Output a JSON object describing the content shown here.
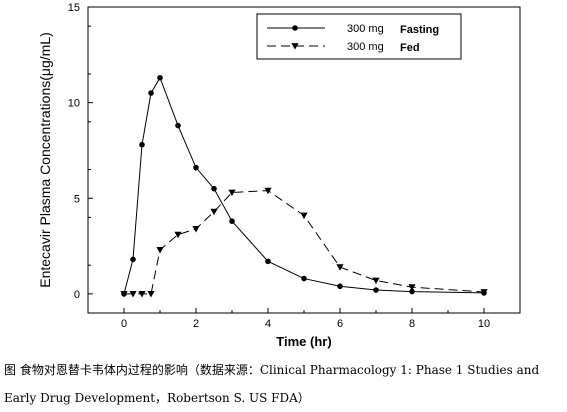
{
  "chart_data": {
    "type": "line",
    "xlabel": "Time (hr)",
    "ylabel": "Entecavir Plasma Concentrations(μg/mL)",
    "xlim": [
      -1,
      11
    ],
    "ylim": [
      -1,
      15
    ],
    "xticks": [
      0,
      2,
      4,
      6,
      8,
      10
    ],
    "yticks": [
      0,
      5,
      10,
      15
    ],
    "grid": false,
    "legend_placement": "top-right",
    "series": [
      {
        "name": "Fasting",
        "dose": "300 mg",
        "marker": "circle",
        "line": "solid",
        "x": [
          0,
          0.25,
          0.5,
          0.75,
          1,
          1.5,
          2,
          2.5,
          3,
          4,
          5,
          6,
          7,
          8,
          10
        ],
        "y": [
          0,
          1.8,
          7.8,
          10.5,
          11.3,
          8.8,
          6.6,
          5.5,
          3.8,
          1.7,
          0.8,
          0.4,
          0.2,
          0.12,
          0.05
        ]
      },
      {
        "name": "Fed",
        "dose": "300 mg",
        "marker": "triangle-down",
        "line": "dashed",
        "x": [
          0,
          0.25,
          0.5,
          0.75,
          1,
          1.5,
          2,
          2.5,
          3,
          4,
          5,
          6,
          7,
          8,
          10
        ],
        "y": [
          0,
          0,
          0,
          0,
          2.3,
          3.1,
          3.4,
          4.3,
          5.3,
          5.4,
          4.1,
          1.4,
          0.7,
          0.35,
          0.1
        ]
      }
    ]
  },
  "caption": {
    "line1": "图 食物对恩替卡韦体内过程的影响（数据来源：Clinical Pharmacology 1: Phase 1 Studies and",
    "line2": "Early Drug Development，Robertson S. US FDA）"
  }
}
